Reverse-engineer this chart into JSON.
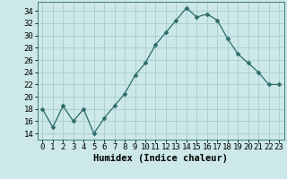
{
  "x": [
    0,
    1,
    2,
    3,
    4,
    5,
    6,
    7,
    8,
    9,
    10,
    11,
    12,
    13,
    14,
    15,
    16,
    17,
    18,
    19,
    20,
    21,
    22,
    23
  ],
  "y": [
    18,
    15,
    18.5,
    16,
    18,
    14,
    16.5,
    18.5,
    20.5,
    23.5,
    25.5,
    28.5,
    30.5,
    32.5,
    34.5,
    33,
    33.5,
    32.5,
    29.5,
    27,
    25.5,
    24,
    22,
    22
  ],
  "line_color": "#2e6b6b",
  "marker": "D",
  "marker_size": 2.5,
  "bg_color": "#cce8e8",
  "grid_color": "#aacccc",
  "xlabel": "Humidex (Indice chaleur)",
  "xlim": [
    -0.5,
    23.5
  ],
  "ylim": [
    13,
    35.5
  ],
  "yticks": [
    14,
    16,
    18,
    20,
    22,
    24,
    26,
    28,
    30,
    32,
    34
  ],
  "xtick_labels": [
    "0",
    "1",
    "2",
    "3",
    "4",
    "5",
    "6",
    "7",
    "8",
    "9",
    "10",
    "11",
    "12",
    "13",
    "14",
    "15",
    "16",
    "17",
    "18",
    "19",
    "20",
    "21",
    "22",
    "23"
  ],
  "xlabel_fontsize": 7.5,
  "tick_fontsize": 6.5
}
